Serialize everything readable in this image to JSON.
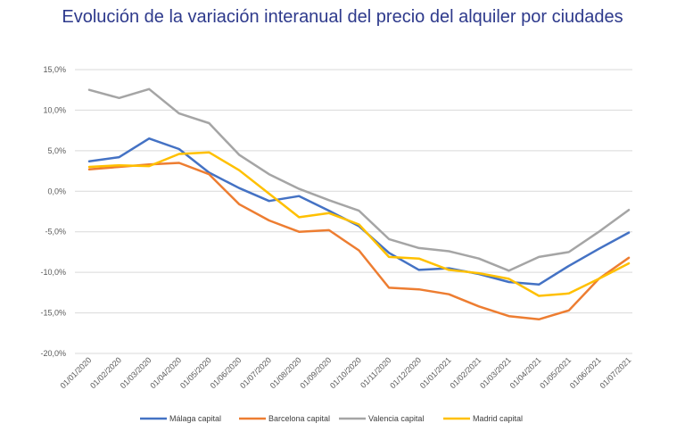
{
  "title": "Evolución de la variación interanual del precio del alquiler por ciudades",
  "chart_data": {
    "type": "line",
    "title": "Evolución de la variación interanual del precio del alquiler por ciudades",
    "xlabel": "",
    "ylabel": "",
    "ylim": [
      -20,
      15
    ],
    "yticks": [
      15,
      10,
      5,
      0,
      -5,
      -10,
      -15,
      -20
    ],
    "ytick_labels": [
      "15,0%",
      "10,0%",
      "5,0%",
      "0,0%",
      "-5,0%",
      "-10,0%",
      "-15,0%",
      "-20,0%"
    ],
    "grid": true,
    "legend_position": "bottom",
    "categories": [
      "01/01/2020",
      "01/02/2020",
      "01/03/2020",
      "01/04/2020",
      "01/05/2020",
      "01/06/2020",
      "01/07/2020",
      "01/08/2020",
      "01/09/2020",
      "01/10/2020",
      "01/11/2020",
      "01/12/2020",
      "01/01/2021",
      "01/02/2021",
      "01/03/2021",
      "01/04/2021",
      "01/05/2021",
      "01/06/2021",
      "01/07/2021"
    ],
    "series": [
      {
        "name": "Málaga capital",
        "color": "#4472c4",
        "values": [
          3.7,
          4.2,
          6.5,
          5.2,
          2.3,
          0.4,
          -1.2,
          -0.6,
          -2.4,
          -4.3,
          -7.6,
          -9.7,
          -9.5,
          -10.2,
          -11.2,
          -11.5,
          -9.2,
          -7.1,
          -5.1
        ]
      },
      {
        "name": "Barcelona capital",
        "color": "#ed7d31",
        "values": [
          2.7,
          3.0,
          3.3,
          3.5,
          2.1,
          -1.6,
          -3.6,
          -5.0,
          -4.8,
          -7.3,
          -11.9,
          -12.1,
          -12.7,
          -14.2,
          -15.4,
          -15.8,
          -14.7,
          -10.8,
          -8.2
        ]
      },
      {
        "name": "Valencia capital",
        "color": "#a5a5a5",
        "values": [
          12.5,
          11.5,
          12.6,
          9.6,
          8.4,
          4.5,
          2.1,
          0.3,
          -1.1,
          -2.4,
          -5.9,
          -7.0,
          -7.4,
          -8.3,
          -9.8,
          -8.1,
          -7.5,
          -5.0,
          -2.3
        ]
      },
      {
        "name": "Madrid capital",
        "color": "#ffc000",
        "values": [
          3.0,
          3.2,
          3.1,
          4.6,
          4.8,
          2.6,
          -0.3,
          -3.2,
          -2.7,
          -4.1,
          -8.1,
          -8.3,
          -9.7,
          -10.1,
          -10.8,
          -12.9,
          -12.6,
          -10.8,
          -8.9
        ]
      }
    ]
  }
}
